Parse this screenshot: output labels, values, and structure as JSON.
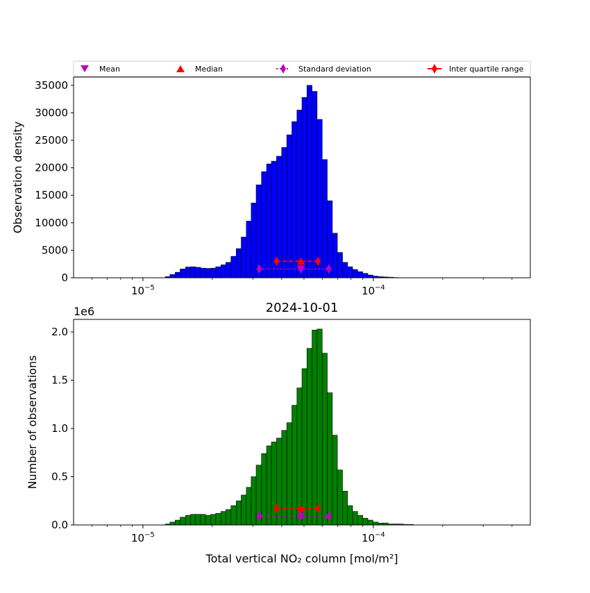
{
  "figure": {
    "legend": {
      "placement": "top",
      "items": [
        {
          "label": "Mean",
          "marker": "triangle-down",
          "color": "#bf00bf",
          "line": "none"
        },
        {
          "label": "Median",
          "marker": "triangle-up",
          "color": "#ff0000",
          "line": "none"
        },
        {
          "label": "Standard deviation",
          "marker": "thin-diamond",
          "color": "#bf00bf",
          "line": "dotted"
        },
        {
          "label": "Inter quartile range",
          "marker": "thin-diamond",
          "color": "#ff0000",
          "line": "solid"
        }
      ]
    }
  },
  "chart_data": [
    {
      "type": "bar",
      "subtype": "histogram",
      "title": "",
      "xlabel": "",
      "ylabel": "Observation density",
      "x_scale": "log",
      "xlim": [
        5e-06,
        0.00048
      ],
      "ylim": [
        0,
        36500
      ],
      "yticks": [
        0,
        5000,
        10000,
        15000,
        20000,
        25000,
        30000,
        35000
      ],
      "xtick_labels": [
        {
          "value": 1e-05,
          "base": "10",
          "exp": "−5"
        },
        {
          "value": 0.0001,
          "base": "10",
          "exp": "−4"
        }
      ],
      "offset_text": "",
      "bar_color": "#0000ff",
      "bin_edges": [
        1.25e-05,
        1.31e-05,
        1.38e-05,
        1.45e-05,
        1.53e-05,
        1.61e-05,
        1.69e-05,
        1.78e-05,
        1.87e-05,
        1.97e-05,
        2.07e-05,
        2.18e-05,
        2.29e-05,
        2.41e-05,
        2.54e-05,
        2.67e-05,
        2.81e-05,
        2.95e-05,
        3.1e-05,
        3.27e-05,
        3.44e-05,
        3.61e-05,
        3.8e-05,
        4e-05,
        4.21e-05,
        4.43e-05,
        4.66e-05,
        4.9e-05,
        5.15e-05,
        5.42e-05,
        5.7e-05,
        6e-05,
        6.31e-05,
        6.64e-05,
        6.98e-05,
        7.35e-05,
        7.73e-05,
        8.13e-05,
        8.55e-05,
        9e-05,
        9.47e-05,
        9.96e-05,
        0.0001048,
        0.0001102,
        0.000116,
        0.000122,
        0.0001283
      ],
      "values": [
        200,
        600,
        1000,
        1600,
        1950,
        2000,
        1900,
        1750,
        1700,
        1750,
        2000,
        2350,
        2800,
        3900,
        5300,
        7400,
        10300,
        13600,
        16900,
        19300,
        20700,
        21200,
        22100,
        23700,
        26000,
        28400,
        30500,
        32800,
        35000,
        33900,
        28800,
        21500,
        14000,
        8100,
        4600,
        2800,
        2000,
        1500,
        1100,
        800,
        500,
        300,
        200,
        150,
        100,
        50
      ],
      "stats": {
        "mean": {
          "x": 4.85e-05,
          "y": 1600
        },
        "median": {
          "x": 4.85e-05,
          "y": 3000
        },
        "std_range": {
          "x": [
            3.2e-05,
            6.4e-05
          ],
          "y": 1600
        },
        "iqr": {
          "x": [
            3.8e-05,
            5.75e-05
          ],
          "y": 3000
        }
      }
    },
    {
      "type": "bar",
      "subtype": "histogram",
      "title": "2024-10-01",
      "xlabel": "Total vertical NO₂ column [mol/m²]",
      "ylabel": "Number of observations",
      "x_scale": "log",
      "xlim": [
        5e-06,
        0.00048
      ],
      "ylim": [
        0,
        2.13
      ],
      "yticks": [
        0.0,
        0.5,
        1.0,
        1.5,
        2.0
      ],
      "ytick_labels": [
        "0.0",
        "0.5",
        "1.0",
        "1.5",
        "2.0"
      ],
      "xtick_labels": [
        {
          "value": 1e-05,
          "base": "10",
          "exp": "−5"
        },
        {
          "value": 0.0001,
          "base": "10",
          "exp": "−4"
        }
      ],
      "offset_text": "1e6",
      "bar_color": "#008000",
      "bin_edges": [
        1.25e-05,
        1.31e-05,
        1.38e-05,
        1.45e-05,
        1.53e-05,
        1.61e-05,
        1.69e-05,
        1.78e-05,
        1.87e-05,
        1.97e-05,
        2.07e-05,
        2.18e-05,
        2.29e-05,
        2.41e-05,
        2.54e-05,
        2.67e-05,
        2.81e-05,
        2.95e-05,
        3.1e-05,
        3.27e-05,
        3.44e-05,
        3.61e-05,
        3.8e-05,
        4e-05,
        4.21e-05,
        4.43e-05,
        4.66e-05,
        4.9e-05,
        5.15e-05,
        5.42e-05,
        5.7e-05,
        6e-05,
        6.31e-05,
        6.64e-05,
        6.98e-05,
        7.35e-05,
        7.73e-05,
        8.13e-05,
        8.55e-05,
        9e-05,
        9.47e-05,
        9.96e-05,
        0.0001048,
        0.0001102,
        0.000116,
        0.000122,
        0.0001283,
        0.000135,
        0.000142,
        0.0001493
      ],
      "values": [
        0.01,
        0.03,
        0.05,
        0.08,
        0.1,
        0.11,
        0.11,
        0.11,
        0.1,
        0.11,
        0.12,
        0.14,
        0.16,
        0.2,
        0.25,
        0.31,
        0.39,
        0.5,
        0.62,
        0.74,
        0.82,
        0.86,
        0.9,
        0.98,
        1.06,
        1.24,
        1.42,
        1.62,
        1.83,
        2.02,
        2.03,
        1.78,
        1.37,
        0.93,
        0.57,
        0.35,
        0.2,
        0.14,
        0.1,
        0.07,
        0.05,
        0.03,
        0.02,
        0.02,
        0.01,
        0.01,
        0.01,
        0.005,
        0.005
      ],
      "stats": {
        "mean": {
          "x": 4.85e-05,
          "y": 0.09
        },
        "median": {
          "x": 4.85e-05,
          "y": 0.17
        },
        "std_range": {
          "x": [
            3.2e-05,
            6.4e-05
          ],
          "y": 0.09
        },
        "iqr": {
          "x": [
            3.8e-05,
            5.75e-05
          ],
          "y": 0.17
        }
      }
    }
  ]
}
